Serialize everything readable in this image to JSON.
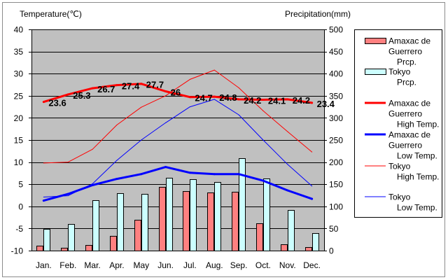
{
  "chart_data": {
    "type": "bar",
    "categories": [
      "Jan.",
      "Feb.",
      "Mar.",
      "Apr.",
      "May",
      "Jun.",
      "Jul.",
      "Aug.",
      "Sep.",
      "Oct.",
      "Nov.",
      "Dec."
    ],
    "y_left": {
      "label": "Temperature(℃)",
      "range": [
        -10,
        40
      ],
      "ticks": [
        40,
        35,
        30,
        25,
        20,
        15,
        10,
        5,
        0,
        -5,
        -10
      ]
    },
    "y_right": {
      "label": "Precipitation(mm)",
      "range": [
        0,
        500
      ],
      "ticks": [
        500,
        450,
        400,
        350,
        300,
        250,
        200,
        150,
        100,
        50,
        0
      ]
    },
    "grid": true,
    "legend": "right",
    "plot_background": "#C0C0C0",
    "series": [
      {
        "type": "bar",
        "legend_lines": [
          "Amaxac de",
          "Guerrero",
          "Prcp."
        ],
        "color": "#FF8080",
        "values": [
          11,
          6,
          12,
          34,
          69,
          144,
          134,
          131,
          133,
          61,
          14,
          8
        ]
      },
      {
        "type": "bar",
        "legend_lines": [
          "Tokyo",
          "Prcp."
        ],
        "color": "#CCFFFF",
        "values": [
          48.6,
          60.2,
          114.5,
          130.3,
          128.0,
          164.9,
          161.5,
          155.1,
          208.5,
          163.1,
          92.5,
          39.6
        ]
      },
      {
        "type": "line",
        "legend_lines": [
          "Amaxac de",
          "Guerrero",
          "High Temp."
        ],
        "color": "#FF0000",
        "show_labels": true,
        "values": [
          23.6,
          25.3,
          26.7,
          27.4,
          27.7,
          26,
          24.7,
          24.8,
          24.2,
          24.1,
          24.2,
          23.4
        ]
      },
      {
        "type": "line",
        "legend_lines": [
          "Amaxac de",
          "Guerrero",
          "Low Temp."
        ],
        "color": "#0000FF",
        "values": [
          1.3,
          2.8,
          4.8,
          6.2,
          7.3,
          8.9,
          7.6,
          7.3,
          7.3,
          5.8,
          3.6,
          1.7
        ]
      },
      {
        "type": "line",
        "legend_lines": [
          "Tokyo",
          "High Temp."
        ],
        "color": "#FF0000",
        "values": [
          9.8,
          10.0,
          12.9,
          18.4,
          22.4,
          25.0,
          28.7,
          30.8,
          26.8,
          21.6,
          16.9,
          12.3
        ]
      },
      {
        "type": "line",
        "legend_lines": [
          "Tokyo",
          "Low Temp."
        ],
        "color": "#0000FF",
        "values": [
          2.1,
          2.4,
          5.1,
          10.4,
          15.0,
          18.9,
          22.5,
          24.2,
          20.7,
          15.0,
          9.5,
          4.6
        ]
      }
    ]
  }
}
